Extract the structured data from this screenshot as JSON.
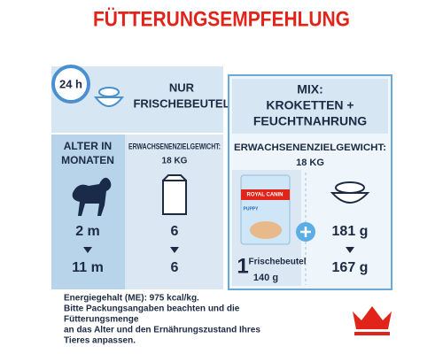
{
  "title": "FÜTTERUNGSEMPFEHLUNG",
  "left_panel": {
    "clock": "24 h",
    "header": [
      "NUR",
      "FRISCHEBEUTEL"
    ],
    "age_column": {
      "header": [
        "ALTER IN",
        "MONATEN"
      ],
      "rows": [
        "2 m",
        "11 m"
      ]
    },
    "pouch_column": {
      "header": "ERWACHSENENZIELGEWICHT:",
      "weight": "18 KG",
      "rows": [
        "6",
        "6"
      ]
    }
  },
  "right_panel": {
    "header": [
      "MIX:",
      "KROKETTEN +",
      "FEUCHTNAHRUNG"
    ],
    "subheader": "ERWACHSENENZIELGEWICHT:",
    "weight": "18 KG",
    "pouch": {
      "brand": "ROYAL CANIN",
      "product": "PUPPY",
      "count": "1",
      "label": "Frischebeutel",
      "weight": "140 g"
    },
    "kibble_rows": [
      "181 g",
      "167 g"
    ]
  },
  "footer": [
    "Energiegehalt (ME): 975 kcal/kg.",
    "Bitte Packungsangaben beachten und die",
    "Fütterungsmenge",
    "an das Alter und den Ernährungszustand Ihres",
    "Tieres anpassen."
  ]
}
